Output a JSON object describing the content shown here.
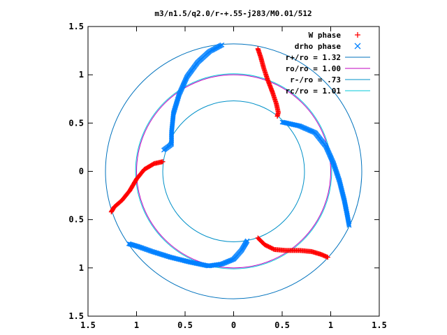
{
  "chart_data": {
    "type": "scatter",
    "title": "m3/n1.5/q2.0/r-+.55-j283/M0.01/512",
    "xlabel": "",
    "ylabel": "",
    "xlim": [
      -1.5,
      1.5
    ],
    "ylim": [
      -1.5,
      1.5
    ],
    "x_ticks": [
      -1.5,
      -1,
      -0.5,
      0,
      0.5,
      1,
      1.5
    ],
    "y_ticks": [
      -1.5,
      -1,
      -0.5,
      0,
      0.5,
      1,
      1.5
    ],
    "x_tick_labels": [
      "1.5",
      "1",
      "0.5",
      "0",
      "0.5",
      "1",
      "1.5"
    ],
    "y_tick_labels": [
      "1.5",
      "1",
      "0.5",
      "0",
      "0.5",
      "1",
      "1.5"
    ],
    "grid": false,
    "legend_position": "top-right",
    "colors": {
      "w_phase": "#ff0000",
      "drho_phase": "#0080ff",
      "r_plus": "#0072bd",
      "r_o": "#c000c0",
      "r_minus": "#0090c8",
      "r_c": "#00c8d8"
    },
    "series": [
      {
        "name": "W phase",
        "kind": "points",
        "marker": "+",
        "points": [
          [
            [
              0.25,
              1.27
            ],
            [
              0.28,
              1.18
            ],
            [
              0.31,
              1.07
            ],
            [
              0.35,
              0.95
            ],
            [
              0.4,
              0.82
            ],
            [
              0.44,
              0.7
            ],
            [
              0.46,
              0.61
            ],
            [
              0.45,
              0.57
            ]
          ],
          [
            [
              -0.73,
              0.1
            ],
            [
              -0.82,
              0.08
            ],
            [
              -0.92,
              0.02
            ],
            [
              -1.0,
              -0.08
            ],
            [
              -1.07,
              -0.2
            ],
            [
              -1.15,
              -0.3
            ],
            [
              -1.23,
              -0.37
            ],
            [
              -1.26,
              -0.42
            ]
          ],
          [
            [
              0.25,
              -0.69
            ],
            [
              0.32,
              -0.76
            ],
            [
              0.42,
              -0.81
            ],
            [
              0.55,
              -0.82
            ],
            [
              0.68,
              -0.82
            ],
            [
              0.8,
              -0.83
            ],
            [
              0.9,
              -0.86
            ],
            [
              0.97,
              -0.89
            ]
          ]
        ]
      },
      {
        "name": "drho phase",
        "kind": "points",
        "marker": "x",
        "points": [
          [
            [
              -0.12,
              1.31
            ],
            [
              -0.25,
              1.24
            ],
            [
              -0.37,
              1.13
            ],
            [
              -0.48,
              0.98
            ],
            [
              -0.56,
              0.8
            ],
            [
              -0.62,
              0.6
            ],
            [
              -0.64,
              0.4
            ],
            [
              -0.64,
              0.28
            ],
            [
              -0.72,
              0.22
            ]
          ],
          [
            [
              0.5,
              0.51
            ],
            [
              0.68,
              0.47
            ],
            [
              0.84,
              0.4
            ],
            [
              0.95,
              0.26
            ],
            [
              1.03,
              0.08
            ],
            [
              1.09,
              -0.1
            ],
            [
              1.14,
              -0.3
            ],
            [
              1.17,
              -0.45
            ],
            [
              1.19,
              -0.56
            ]
          ],
          [
            [
              0.14,
              -0.72
            ],
            [
              0.08,
              -0.82
            ],
            [
              0.0,
              -0.91
            ],
            [
              -0.12,
              -0.96
            ],
            [
              -0.26,
              -0.98
            ],
            [
              -0.45,
              -0.94
            ],
            [
              -0.65,
              -0.89
            ],
            [
              -0.84,
              -0.83
            ],
            [
              -0.98,
              -0.78
            ],
            [
              -1.08,
              -0.75
            ]
          ]
        ]
      },
      {
        "name": "r+/ro = 1.32",
        "kind": "circle",
        "r": 1.32
      },
      {
        "name": "ro/ro = 1.00",
        "kind": "circle",
        "r": 1.0
      },
      {
        "name": "r-/ro = .73",
        "kind": "circle",
        "r": 0.73
      },
      {
        "name": "rc/ro = 1.01",
        "kind": "circle",
        "r": 1.01
      }
    ]
  }
}
